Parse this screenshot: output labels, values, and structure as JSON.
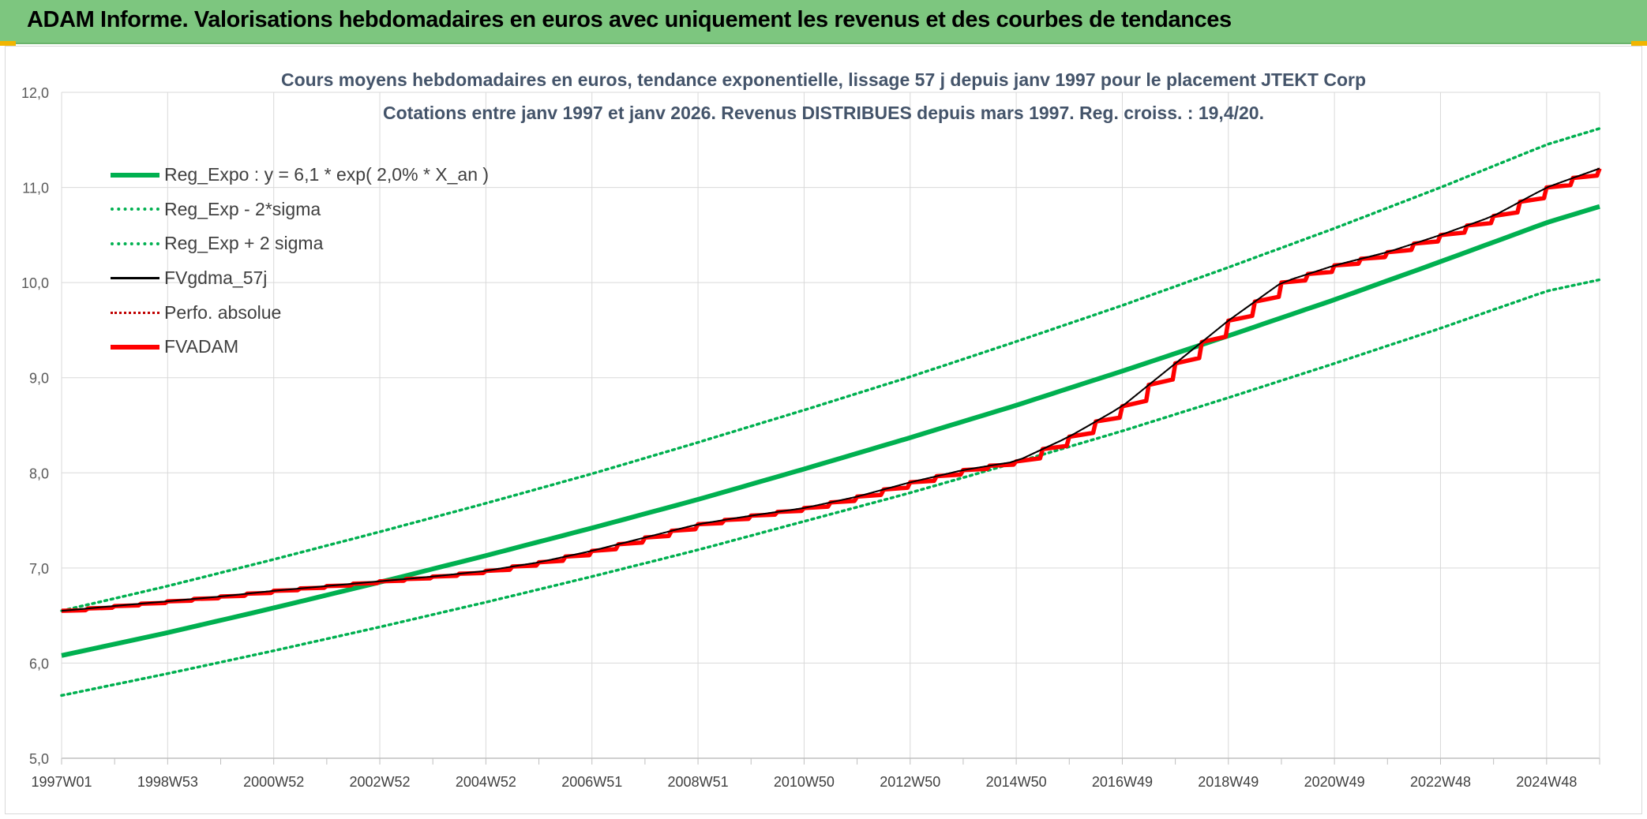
{
  "header": {
    "title": "ADAM Informe. Valorisations hebdomadaires en euros avec uniquement les revenus et des courbes de tendances"
  },
  "chart_data": {
    "type": "line",
    "title": "Cours moyens hebdomadaires en euros, tendance exponentielle, lissage 57 j depuis janv 1997 pour le placement JTEKT Corp",
    "subtitle": "Cotations entre janv 1997 et janv 2026. Revenus DISTRIBUES depuis mars 1997. Reg. croiss. : 19,4/20.",
    "xlabel": "",
    "ylabel": "",
    "ylim": [
      5.0,
      12.0
    ],
    "grid": true,
    "legend_position": "top-left",
    "y_ticks": [
      "5,0",
      "6,0",
      "7,0",
      "8,0",
      "9,0",
      "10,0",
      "11,0",
      "12,0"
    ],
    "x_ticks": [
      "1997W01",
      "1998W53",
      "2000W52",
      "2002W52",
      "2004W52",
      "2006W51",
      "2008W51",
      "2010W50",
      "2012W50",
      "2014W50",
      "2016W49",
      "2018W49",
      "2020W49",
      "2022W48",
      "2024W48"
    ],
    "x_range": [
      "1997W01",
      "2026W01"
    ],
    "colors": {
      "reg_expo": "#00b050",
      "sigma": "#00b050",
      "fvgdma": "#000000",
      "perfo": "#c00000",
      "fvadam": "#ff0000"
    },
    "series": [
      {
        "name": "Reg_Expo : y = 6,1 * exp( 2,0% *  X_an )",
        "style": "solid-thick",
        "x": [
          1997.0,
          1999.0,
          2001.0,
          2003.0,
          2005.0,
          2007.0,
          2009.0,
          2011.0,
          2013.0,
          2015.0,
          2017.0,
          2019.0,
          2021.0,
          2023.0,
          2025.0,
          2026.0
        ],
        "y": [
          6.08,
          6.32,
          6.58,
          6.85,
          7.13,
          7.42,
          7.72,
          8.04,
          8.37,
          8.71,
          9.07,
          9.44,
          9.82,
          10.22,
          10.63,
          10.8
        ]
      },
      {
        "name": "Reg_Exp - 2*sigma",
        "style": "dotted",
        "x": [
          1997.0,
          1999.0,
          2001.0,
          2003.0,
          2005.0,
          2007.0,
          2009.0,
          2011.0,
          2013.0,
          2015.0,
          2017.0,
          2019.0,
          2021.0,
          2023.0,
          2025.0,
          2026.0
        ],
        "y": [
          5.66,
          5.89,
          6.13,
          6.38,
          6.64,
          6.91,
          7.19,
          7.49,
          7.79,
          8.11,
          8.44,
          8.79,
          9.15,
          9.52,
          9.91,
          10.03
        ]
      },
      {
        "name": "Reg_Exp + 2 sigma",
        "style": "dotted",
        "x": [
          1997.0,
          1999.0,
          2001.0,
          2003.0,
          2005.0,
          2007.0,
          2009.0,
          2011.0,
          2013.0,
          2015.0,
          2017.0,
          2019.0,
          2021.0,
          2023.0,
          2025.0,
          2026.0
        ],
        "y": [
          6.55,
          6.81,
          7.09,
          7.38,
          7.68,
          7.99,
          8.32,
          8.66,
          9.01,
          9.38,
          9.76,
          10.16,
          10.57,
          11.0,
          11.45,
          11.62
        ]
      },
      {
        "name": "FVgdma_57j",
        "style": "solid-thin",
        "x": [
          1997.0,
          1998.0,
          1999.0,
          2000.0,
          2001.0,
          2002.0,
          2003.0,
          2004.0,
          2005.0,
          2006.0,
          2007.0,
          2008.0,
          2009.0,
          2010.0,
          2011.0,
          2012.0,
          2013.0,
          2014.0,
          2015.0,
          2016.0,
          2017.0,
          2018.0,
          2019.0,
          2020.0,
          2021.0,
          2022.0,
          2023.0,
          2024.0,
          2025.0,
          2026.0
        ],
        "y": [
          6.55,
          6.6,
          6.65,
          6.7,
          6.76,
          6.81,
          6.86,
          6.91,
          6.97,
          7.06,
          7.18,
          7.32,
          7.46,
          7.55,
          7.63,
          7.75,
          7.9,
          8.03,
          8.12,
          8.38,
          8.7,
          9.15,
          9.6,
          10.0,
          10.18,
          10.32,
          10.5,
          10.7,
          11.0,
          11.2
        ]
      },
      {
        "name": "Perfo. absolue",
        "style": "dotted-red",
        "x": [
          1997.0,
          1998.0,
          1999.0,
          2000.0,
          2001.0,
          2002.0,
          2003.0,
          2004.0,
          2005.0,
          2006.0,
          2007.0,
          2008.0,
          2009.0,
          2010.0,
          2011.0,
          2012.0,
          2013.0,
          2014.0,
          2015.0,
          2016.0,
          2017.0,
          2018.0,
          2019.0,
          2020.0,
          2021.0,
          2022.0,
          2023.0,
          2024.0,
          2025.0,
          2026.0
        ],
        "y": [
          6.55,
          6.6,
          6.65,
          6.7,
          6.76,
          6.81,
          6.86,
          6.91,
          6.97,
          7.06,
          7.18,
          7.32,
          7.46,
          7.55,
          7.63,
          7.75,
          7.9,
          8.03,
          8.12,
          8.38,
          8.7,
          9.15,
          9.6,
          10.0,
          10.18,
          10.32,
          10.5,
          10.7,
          11.0,
          11.2
        ]
      },
      {
        "name": "FVADAM",
        "style": "staircase-thick",
        "x": [
          1997.0,
          1998.0,
          1999.0,
          2000.0,
          2001.0,
          2002.0,
          2003.0,
          2004.0,
          2005.0,
          2006.0,
          2007.0,
          2008.0,
          2009.0,
          2010.0,
          2011.0,
          2012.0,
          2013.0,
          2014.0,
          2015.0,
          2016.0,
          2017.0,
          2018.0,
          2019.0,
          2020.0,
          2021.0,
          2022.0,
          2023.0,
          2024.0,
          2025.0,
          2026.0
        ],
        "y": [
          6.55,
          6.6,
          6.65,
          6.7,
          6.76,
          6.81,
          6.86,
          6.91,
          6.97,
          7.06,
          7.18,
          7.32,
          7.46,
          7.55,
          7.63,
          7.75,
          7.9,
          8.03,
          8.12,
          8.38,
          8.7,
          9.15,
          9.6,
          10.0,
          10.18,
          10.32,
          10.5,
          10.7,
          11.0,
          11.2
        ]
      }
    ]
  }
}
